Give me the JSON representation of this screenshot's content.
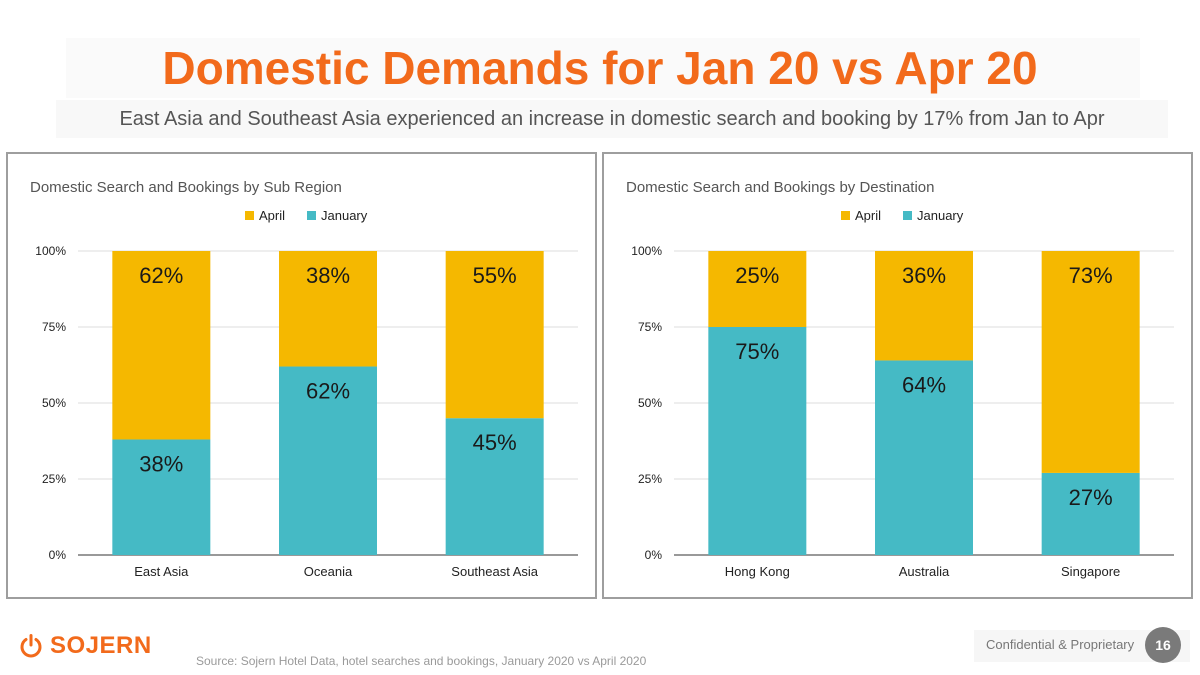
{
  "slide": {
    "title": "Domestic Demands for Jan 20 vs Apr 20",
    "subtitle": "East Asia and Southeast Asia experienced an increase in domestic search and booking by 17% from Jan to Apr",
    "source": "Source: Sojern Hotel Data, hotel searches and bookings, January 2020 vs April 2020",
    "confidential": "Confidential & Proprietary",
    "page_number": "16",
    "logo_text": "SOJERN",
    "logo_icon": "power-icon"
  },
  "colors": {
    "april": "#F5B800",
    "january": "#45BAC5",
    "title": "#F26A1B"
  },
  "chart_data": [
    {
      "type": "bar",
      "stacked": true,
      "title": "Domestic Search and Bookings by Sub Region",
      "categories": [
        "East Asia",
        "Oceania",
        "Southeast Asia"
      ],
      "series": [
        {
          "name": "January",
          "values": [
            38,
            62,
            45
          ],
          "labels": [
            "38%",
            "62%",
            "45%"
          ]
        },
        {
          "name": "April",
          "values": [
            62,
            38,
            55
          ],
          "labels": [
            "62%",
            "38%",
            "55%"
          ]
        }
      ],
      "legend": [
        "April",
        "January"
      ],
      "legend_position": "top",
      "y_ticks": [
        "0%",
        "25%",
        "50%",
        "75%",
        "100%"
      ],
      "ylim": [
        0,
        100
      ],
      "grid": true
    },
    {
      "type": "bar",
      "stacked": true,
      "title": "Domestic Search and Bookings by Destination",
      "categories": [
        "Hong Kong",
        "Australia",
        "Singapore"
      ],
      "series": [
        {
          "name": "January",
          "values": [
            75,
            64,
            27
          ],
          "labels": [
            "75%",
            "64%",
            "27%"
          ]
        },
        {
          "name": "April",
          "values": [
            25,
            36,
            73
          ],
          "labels": [
            "25%",
            "36%",
            "73%"
          ]
        }
      ],
      "legend": [
        "April",
        "January"
      ],
      "legend_position": "top",
      "y_ticks": [
        "0%",
        "25%",
        "50%",
        "75%",
        "100%"
      ],
      "ylim": [
        0,
        100
      ],
      "grid": true
    }
  ]
}
